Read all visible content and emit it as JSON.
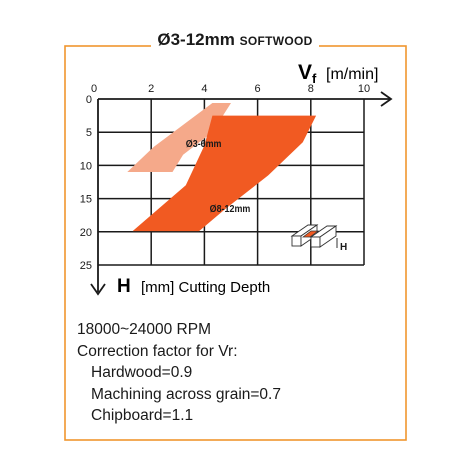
{
  "title": {
    "main": "Ø3-12mm",
    "sub": "SOFTWOOD"
  },
  "chart_data": {
    "type": "area",
    "x_axis": {
      "symbol": "V",
      "subscript": "f",
      "unit": "[m/min]",
      "ticks": [
        0,
        2,
        4,
        6,
        8,
        10
      ],
      "range": [
        0,
        10
      ]
    },
    "y_axis": {
      "symbol": "H",
      "label": "[mm] Cutting Depth",
      "ticks": [
        0,
        5,
        10,
        15,
        20,
        25
      ],
      "range": [
        0,
        25
      ],
      "inverted": true
    },
    "grid": true,
    "series": [
      {
        "name": "Ø3-6mm",
        "color": "#f5a98a",
        "polygon": [
          [
            4.3,
            0.6
          ],
          [
            5.0,
            0.6
          ],
          [
            4.3,
            5.0
          ],
          [
            3.2,
            8.4
          ],
          [
            2.8,
            11.0
          ],
          [
            1.1,
            11.0
          ],
          [
            2.1,
            7.2
          ],
          [
            3.3,
            3.6
          ]
        ],
        "label_at": [
          3.3,
          7.2
        ]
      },
      {
        "name": "Ø8-12mm",
        "color": "#f15a22",
        "polygon": [
          [
            4.3,
            2.5
          ],
          [
            8.2,
            2.5
          ],
          [
            7.7,
            6.5
          ],
          [
            6.4,
            11.5
          ],
          [
            4.8,
            16.5
          ],
          [
            3.8,
            19.9
          ],
          [
            1.3,
            19.9
          ],
          [
            3.3,
            13.0
          ],
          [
            4.0,
            7.0
          ]
        ],
        "label_at": [
          4.2,
          17.0
        ]
      }
    ]
  },
  "info": {
    "rpm": "18000~24000 RPM",
    "correction_title": "Correction factor for Vr:",
    "factors": [
      "Hardwood=0.9",
      "Machining across grain=0.7",
      "Chipboard=1.1"
    ]
  },
  "diagram_label": "H",
  "colors": {
    "frame": "#f0962e",
    "light": "#f5a98a",
    "dark": "#f15a22"
  }
}
